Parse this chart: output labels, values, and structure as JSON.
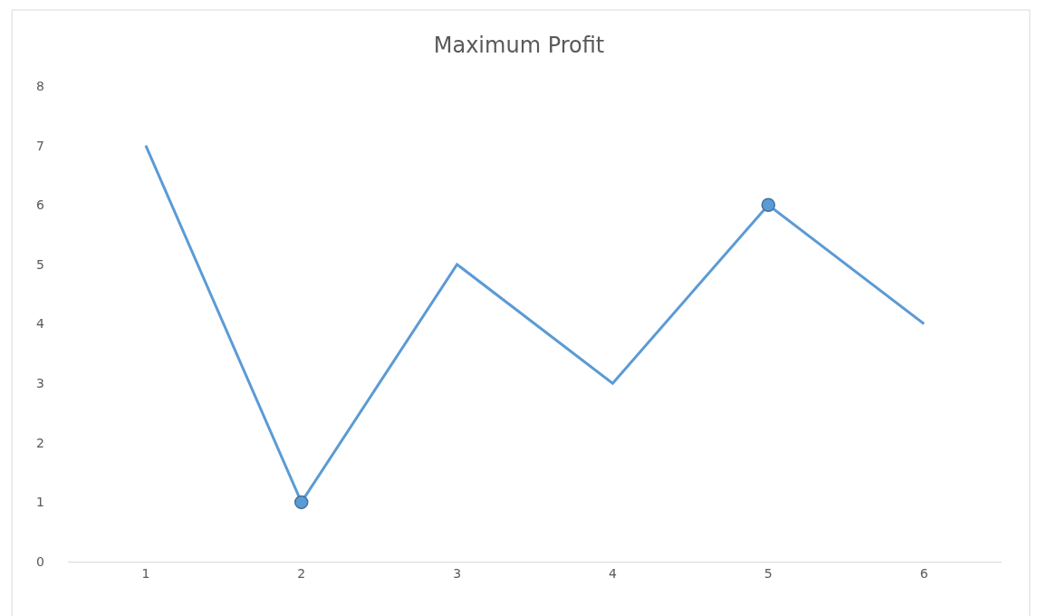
{
  "chart_data": {
    "type": "line",
    "title": "Maximum Profit",
    "categories": [
      "1",
      "2",
      "3",
      "4",
      "5",
      "6"
    ],
    "series": [
      {
        "color": "#5b9bd5",
        "values": [
          7,
          1,
          5,
          3,
          6,
          4
        ]
      },
      {
        "type": "scatter",
        "x": [
          "2",
          "5"
        ],
        "color": "#5b9bd5",
        "marker": "circle",
        "values": [
          1,
          6
        ]
      }
    ],
    "ylim": [
      0,
      8
    ],
    "yticks": [
      0,
      1,
      2,
      3,
      4,
      5,
      6,
      7,
      8
    ],
    "grid": false,
    "marker": "none",
    "line_style": "solid"
  }
}
